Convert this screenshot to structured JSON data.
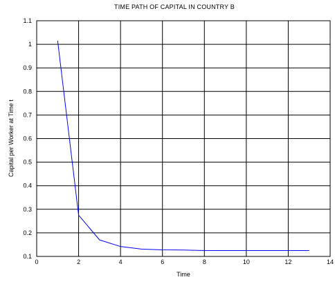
{
  "chart_data": {
    "type": "line",
    "title": "TIME PATH OF CAPITAL IN COUNTRY B",
    "xlabel": "Time",
    "ylabel": "Capital per Worker at Time t",
    "xlim": [
      0,
      14
    ],
    "ylim": [
      0.1,
      1.1
    ],
    "xticks": [
      "0",
      "2",
      "4",
      "6",
      "8",
      "10",
      "12",
      "14"
    ],
    "yticks": [
      "0.1",
      "0.2",
      "0.3",
      "0.4",
      "0.5",
      "0.6",
      "0.7",
      "0.8",
      "0.9",
      "1",
      "1.1"
    ],
    "grid": true,
    "series": [
      {
        "color": "#0000ff",
        "x": [
          1,
          2,
          3,
          4,
          5,
          6,
          7,
          8,
          9,
          10,
          11,
          12,
          13
        ],
        "y": [
          1.015,
          0.275,
          0.17,
          0.142,
          0.131,
          0.128,
          0.127,
          0.125,
          0.125,
          0.125,
          0.125,
          0.125,
          0.125
        ]
      }
    ]
  }
}
